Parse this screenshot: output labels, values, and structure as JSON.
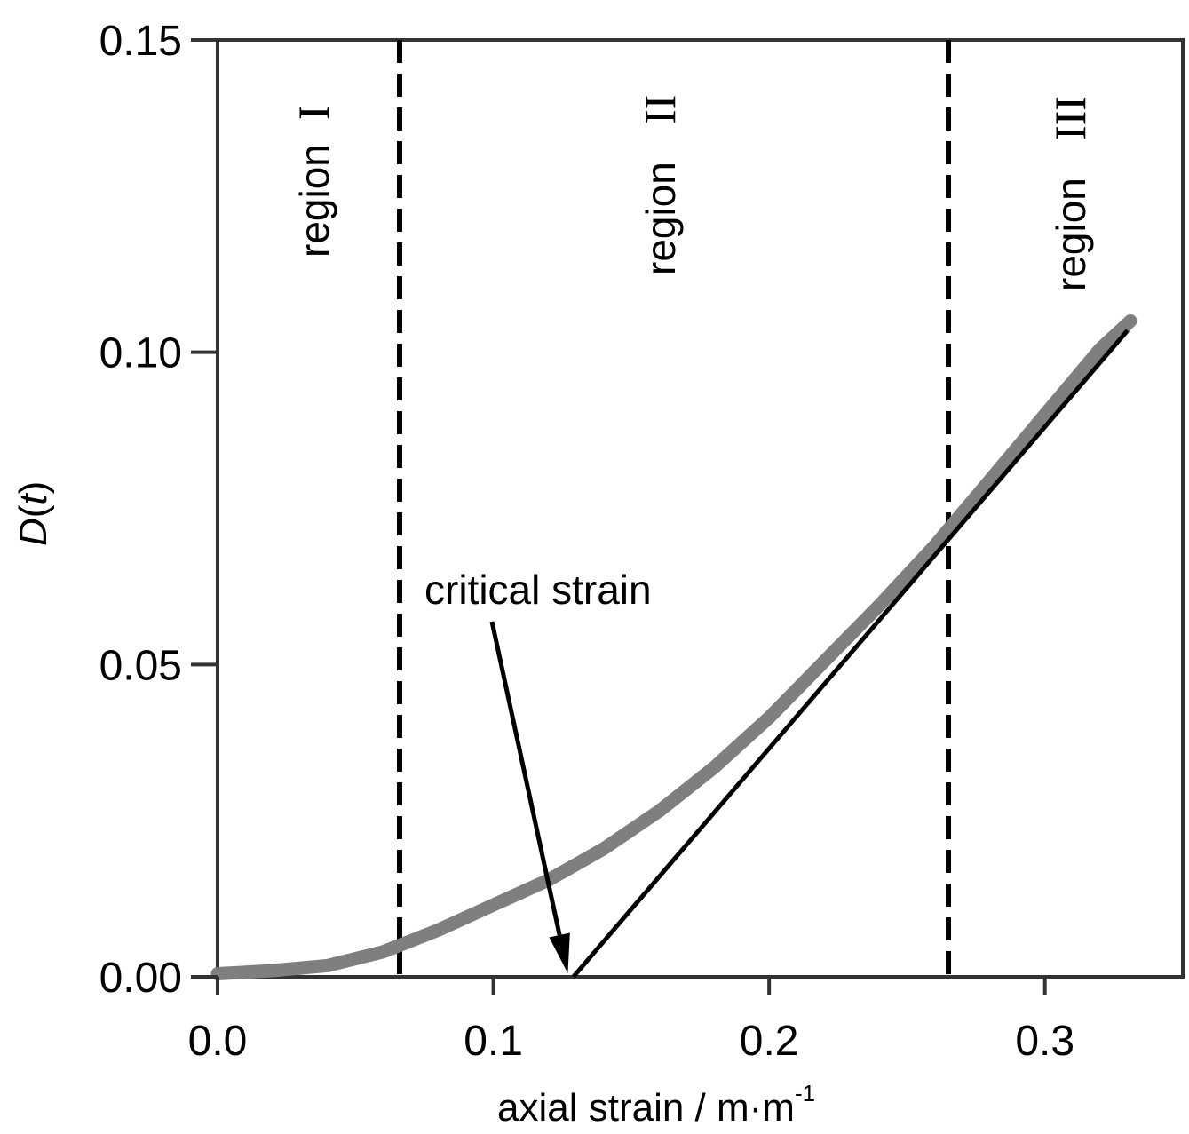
{
  "chart_data": {
    "type": "line",
    "title": "",
    "xlabel": "axial strain / m·m",
    "xlabel_superscript": "-1",
    "ylabel_italic": "D",
    "ylabel_paren_open": "(",
    "ylabel_var": "t",
    "ylabel_paren_close": ")",
    "xlim": [
      0.0,
      0.35
    ],
    "ylim": [
      0.0,
      0.15
    ],
    "xticks": [
      {
        "value": 0.0,
        "label": "0.0"
      },
      {
        "value": 0.1,
        "label": "0.1"
      },
      {
        "value": 0.2,
        "label": "0.2"
      },
      {
        "value": 0.3,
        "label": "0.3"
      }
    ],
    "yticks": [
      {
        "value": 0.0,
        "label": "0.00"
      },
      {
        "value": 0.05,
        "label": "0.05"
      },
      {
        "value": 0.1,
        "label": "0.10"
      },
      {
        "value": 0.15,
        "label": "0.15"
      }
    ],
    "grid": false,
    "series": [
      {
        "color": "#7f7f7f",
        "style": "markers-dense",
        "x": [
          0.0,
          0.02,
          0.04,
          0.06,
          0.08,
          0.1,
          0.12,
          0.14,
          0.16,
          0.18,
          0.2,
          0.22,
          0.24,
          0.26,
          0.28,
          0.3,
          0.32,
          0.331
        ],
        "y": [
          0.0005,
          0.001,
          0.0018,
          0.004,
          0.0075,
          0.0115,
          0.0155,
          0.0205,
          0.0265,
          0.0335,
          0.0415,
          0.0505,
          0.0595,
          0.069,
          0.0795,
          0.09,
          0.1005,
          0.105
        ]
      },
      {
        "color": "#000000",
        "style": "solid-line",
        "x": [
          0.129,
          0.33
        ],
        "y": [
          0.0,
          0.1035
        ]
      }
    ],
    "vertical_lines": [
      {
        "x": 0.066,
        "style": "dashed",
        "color": "#000000"
      },
      {
        "x": 0.265,
        "style": "dashed",
        "color": "#000000"
      }
    ],
    "regions": [
      {
        "word": "region",
        "numeral": "I",
        "x": 0.035
      },
      {
        "word": "region",
        "numeral": "II",
        "x": 0.161
      },
      {
        "word": "region",
        "numeral": "III",
        "x": 0.311
      }
    ],
    "annotation": {
      "text": "critical strain",
      "arrow_to": {
        "x": 0.127,
        "y": 0.0
      }
    }
  }
}
